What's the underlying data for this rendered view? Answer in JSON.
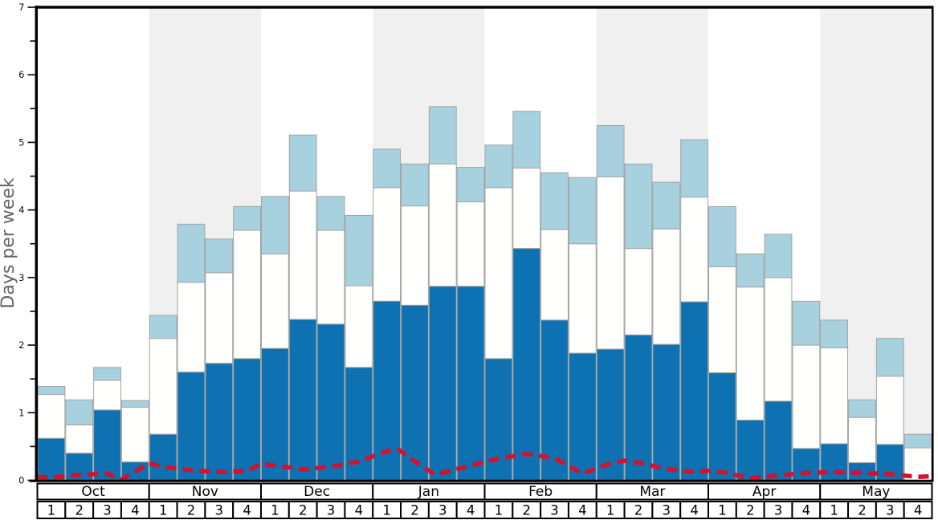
{
  "chart_data": {
    "type": "bar",
    "stacked": true,
    "title": "",
    "ylabel": "Days per week",
    "ylim": [
      0,
      7
    ],
    "y_tick_labels": [
      "0",
      "1",
      "2",
      "3",
      "4",
      "5",
      "6",
      "7"
    ],
    "y_major_tick_step": 1,
    "y_minor_tick_step": 0.5,
    "months": [
      "Oct",
      "Nov",
      "Dec",
      "Jan",
      "Feb",
      "Mar",
      "Apr",
      "May"
    ],
    "weeks_per_month": [
      "1",
      "2",
      "3",
      "4"
    ],
    "shaded_months": [
      "Nov",
      "Jan",
      "Mar",
      "May"
    ],
    "series": [
      {
        "name": "dark-blue-days",
        "color": "#0e72b2",
        "cumulative_tops": [
          0.62,
          0.4,
          1.04,
          0.27,
          0.68,
          1.6,
          1.73,
          1.8,
          1.95,
          2.38,
          2.31,
          1.67,
          2.65,
          2.59,
          2.87,
          2.87,
          1.8,
          3.43,
          2.37,
          1.88,
          1.94,
          2.15,
          2.01,
          2.64,
          1.59,
          0.89,
          1.17,
          0.47,
          0.54,
          0.26,
          0.53,
          0.0
        ]
      },
      {
        "name": "white-days",
        "color": "#fffffe",
        "cumulative_tops": [
          1.27,
          0.82,
          1.48,
          1.08,
          2.1,
          2.93,
          3.07,
          3.7,
          3.35,
          4.28,
          3.7,
          2.88,
          4.33,
          4.06,
          4.68,
          4.12,
          4.33,
          4.62,
          3.71,
          3.5,
          4.49,
          3.43,
          3.72,
          4.19,
          3.16,
          2.86,
          3.0,
          2.0,
          1.96,
          0.93,
          1.54,
          0.48
        ]
      },
      {
        "name": "light-blue-days",
        "color": "#a8d1e0",
        "cumulative_tops": [
          1.39,
          1.19,
          1.67,
          1.18,
          2.44,
          3.79,
          3.57,
          4.05,
          4.2,
          5.11,
          4.2,
          3.92,
          4.9,
          4.68,
          5.53,
          4.63,
          4.96,
          5.46,
          4.55,
          4.48,
          5.25,
          4.68,
          4.41,
          5.04,
          4.05,
          3.35,
          3.64,
          2.65,
          2.37,
          1.19,
          2.1,
          0.68
        ]
      }
    ],
    "dashed_line": {
      "name": "red-dashed-line",
      "color": "#d2122e",
      "points_bar_units": [
        [
          0.0,
          0.05
        ],
        [
          0.5,
          0.04
        ],
        [
          1.5,
          0.08
        ],
        [
          2.5,
          0.1
        ],
        [
          3.0,
          0.01
        ],
        [
          3.5,
          0.13
        ],
        [
          4.0,
          0.25
        ],
        [
          4.5,
          0.2
        ],
        [
          5.5,
          0.15
        ],
        [
          6.5,
          0.12
        ],
        [
          7.5,
          0.14
        ],
        [
          8.0,
          0.24
        ],
        [
          8.5,
          0.22
        ],
        [
          9.5,
          0.16
        ],
        [
          10.5,
          0.2
        ],
        [
          11.5,
          0.28
        ],
        [
          12.5,
          0.43
        ],
        [
          12.9,
          0.46
        ],
        [
          13.5,
          0.28
        ],
        [
          14.2,
          0.09
        ],
        [
          14.5,
          0.11
        ],
        [
          15.5,
          0.22
        ],
        [
          16.5,
          0.32
        ],
        [
          17.5,
          0.39
        ],
        [
          18.5,
          0.33
        ],
        [
          19.5,
          0.1
        ],
        [
          20.5,
          0.25
        ],
        [
          21.0,
          0.29
        ],
        [
          21.5,
          0.26
        ],
        [
          22.5,
          0.17
        ],
        [
          23.5,
          0.12
        ],
        [
          24.0,
          0.14
        ],
        [
          24.5,
          0.12
        ],
        [
          25.5,
          0.03
        ],
        [
          26.5,
          0.07
        ],
        [
          27.5,
          0.11
        ],
        [
          28.5,
          0.12
        ],
        [
          29.5,
          0.11
        ],
        [
          30.5,
          0.09
        ],
        [
          31.5,
          0.05
        ],
        [
          32.0,
          0.06
        ]
      ]
    }
  },
  "colors": {
    "month_band": "#f0f0f0",
    "bar_border": "#a3a3a3",
    "axis": "#000000",
    "label_row_fill": "#ffffff",
    "y_title_gray": "#666666"
  }
}
